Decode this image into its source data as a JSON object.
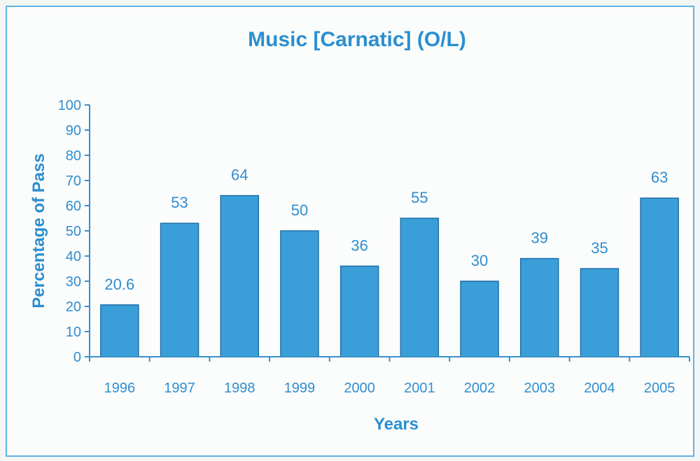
{
  "chart_data": {
    "type": "bar",
    "title": "Music [Carnatic] (O/L)",
    "xlabel": "Years",
    "ylabel": "Percentage of Pass",
    "categories": [
      "1996",
      "1997",
      "1998",
      "1999",
      "2000",
      "2001",
      "2002",
      "2003",
      "2004",
      "2005"
    ],
    "values": [
      20.6,
      53,
      64,
      50,
      36,
      55,
      30,
      39,
      35,
      63
    ],
    "data_labels": [
      "20.6",
      "53",
      "64",
      "50",
      "36",
      "55",
      "30",
      "39",
      "35",
      "63"
    ],
    "ylim": [
      0,
      100
    ],
    "yticks": [
      "0",
      "10",
      "20",
      "30",
      "40",
      "50",
      "60",
      "70",
      "80",
      "90",
      "100"
    ],
    "grid": false,
    "legend": "none",
    "bar_color": "#3a9fd8",
    "text_color": "#2a8fd0"
  }
}
